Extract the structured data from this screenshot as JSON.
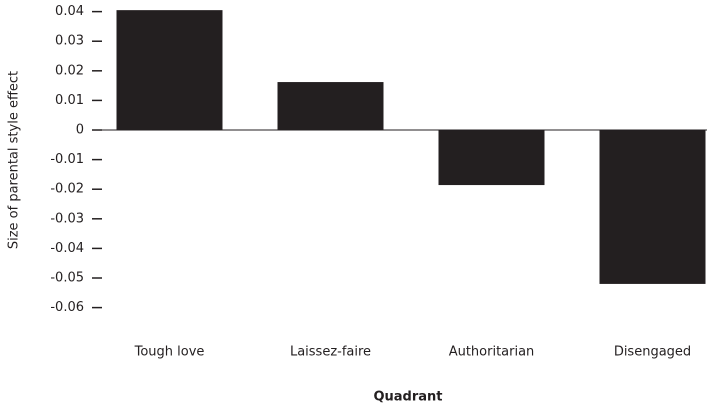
{
  "chart_data": {
    "type": "bar",
    "categories": [
      "Tough love",
      "Laissez-faire",
      "Authoritarian",
      "Disengaged"
    ],
    "values": [
      0.0405,
      0.0162,
      -0.0186,
      -0.052
    ],
    "color": "#231f20",
    "xlabel": "Quadrant",
    "ylabel": "Size of parental style effect",
    "ylim": [
      -0.06,
      0.042
    ],
    "yticks": [
      -0.06,
      -0.05,
      -0.04,
      -0.03,
      -0.02,
      -0.01,
      0,
      0.01,
      0.02,
      0.03,
      0.04
    ],
    "grid": false
  }
}
